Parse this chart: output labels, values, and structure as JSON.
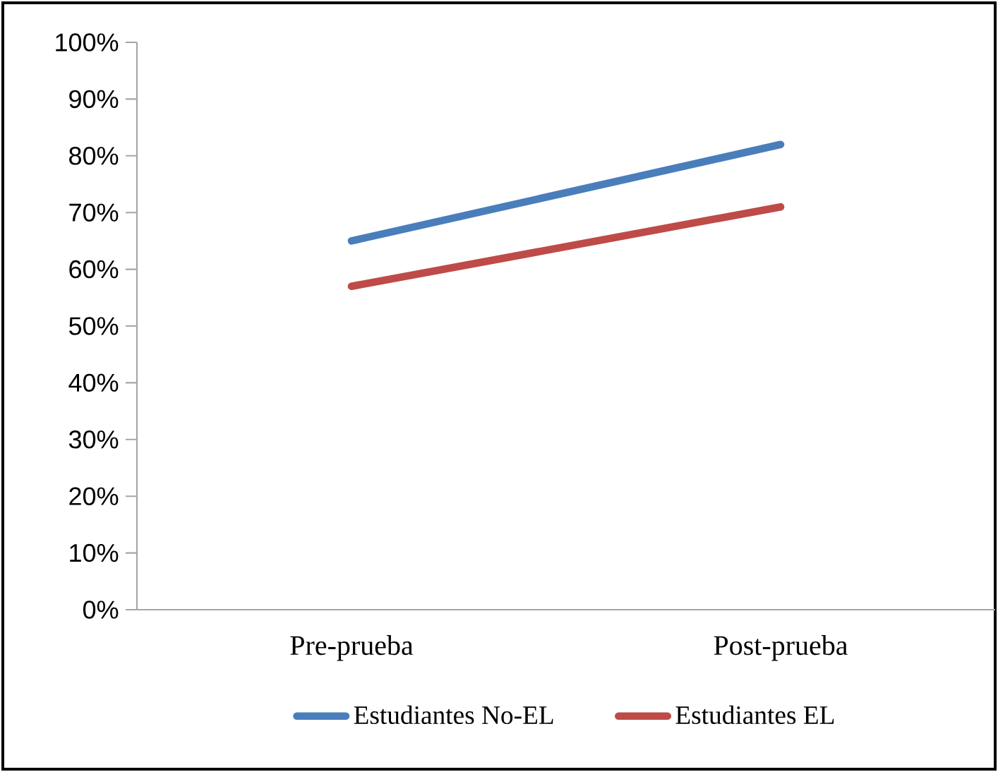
{
  "chart_data": {
    "type": "line",
    "categories": [
      "Pre-prueba",
      "Post-prueba"
    ],
    "series": [
      {
        "name": "Estudiantes No-EL",
        "color": "#4a7ebb",
        "values": [
          65,
          82
        ]
      },
      {
        "name": "Estudiantes EL",
        "color": "#be4b48",
        "values": [
          57,
          71
        ]
      }
    ],
    "ylim": [
      0,
      100
    ],
    "yticks": [
      {
        "value": 0,
        "label": "0%"
      },
      {
        "value": 10,
        "label": "10%"
      },
      {
        "value": 20,
        "label": "20%"
      },
      {
        "value": 30,
        "label": "30%"
      },
      {
        "value": 40,
        "label": "40%"
      },
      {
        "value": 50,
        "label": "50%"
      },
      {
        "value": 60,
        "label": "60%"
      },
      {
        "value": 70,
        "label": "70%"
      },
      {
        "value": 80,
        "label": "80%"
      },
      {
        "value": 90,
        "label": "90%"
      },
      {
        "value": 100,
        "label": "100%"
      }
    ],
    "grid": false,
    "legend": "bottom",
    "marker": "none",
    "line_style": "solid"
  }
}
